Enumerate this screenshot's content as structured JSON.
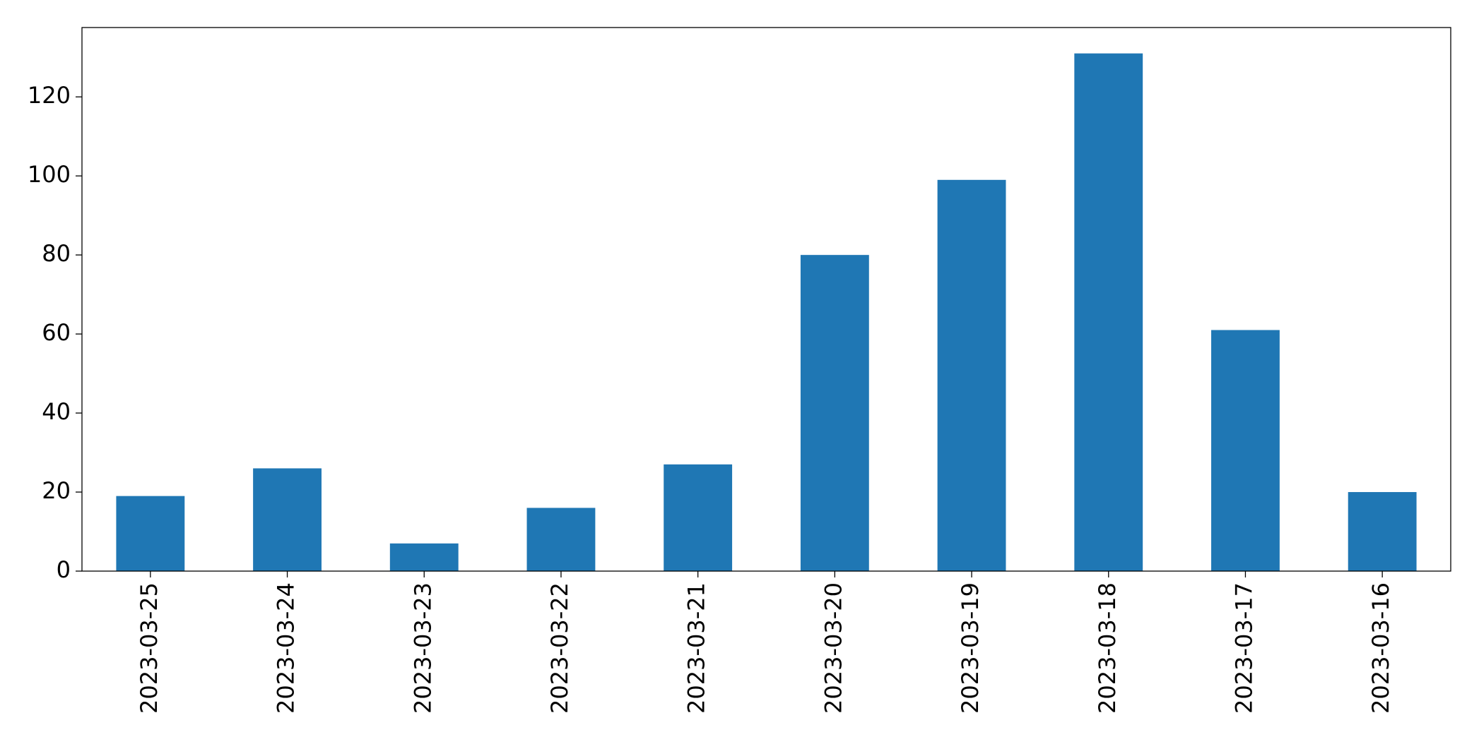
{
  "chart_data": {
    "type": "bar",
    "categories": [
      "2023-03-25",
      "2023-03-24",
      "2023-03-23",
      "2023-03-22",
      "2023-03-21",
      "2023-03-20",
      "2023-03-19",
      "2023-03-18",
      "2023-03-17",
      "2023-03-16"
    ],
    "values": [
      19,
      26,
      7,
      16,
      27,
      80,
      99,
      131,
      61,
      20
    ],
    "color": "#1f77b4",
    "ylim": [
      0,
      137.55
    ],
    "yticks": [
      0,
      20,
      40,
      60,
      80,
      100,
      120
    ],
    "grid": false
  }
}
